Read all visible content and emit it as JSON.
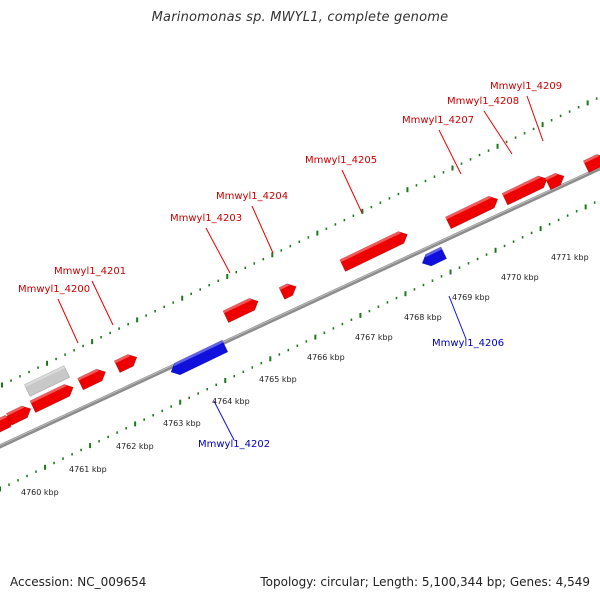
{
  "title": "Marinomonas sp. MWYL1, complete genome",
  "footer": {
    "accession": "Accession: NC_009654",
    "info": "Topology: circular; Length: 5,100,344 bp; Genes: 4,549"
  },
  "colors": {
    "forward_gene": "#ee0000",
    "reverse_gene": "#1010dd",
    "pseudo_gene": "#c8c8c8",
    "forward_label": "#cc0000",
    "reverse_label": "#0000bb",
    "backbone": "#8c8c8c",
    "tick": "#1a7a1a",
    "text": "#222222"
  },
  "genes": [
    {
      "label": "Mmwyl1_4200",
      "strand": "forward"
    },
    {
      "label": "Mmwyl1_4201",
      "strand": "forward"
    },
    {
      "label": "Mmwyl1_4202",
      "strand": "reverse"
    },
    {
      "label": "Mmwyl1_4203",
      "strand": "forward"
    },
    {
      "label": "Mmwyl1_4204",
      "strand": "forward"
    },
    {
      "label": "Mmwyl1_4205",
      "strand": "forward"
    },
    {
      "label": "Mmwyl1_4206",
      "strand": "reverse"
    },
    {
      "label": "Mmwyl1_4207",
      "strand": "forward"
    },
    {
      "label": "Mmwyl1_4208",
      "strand": "forward"
    },
    {
      "label": "Mmwyl1_4209",
      "strand": "forward"
    }
  ],
  "scale_labels": [
    "4760 kbp",
    "4761 kbp",
    "4762 kbp",
    "4763 kbp",
    "4764 kbp",
    "4765 kbp",
    "4766 kbp",
    "4767 kbp",
    "4768 kbp",
    "4769 kbp",
    "4770 kbp",
    "4771 kbp"
  ]
}
